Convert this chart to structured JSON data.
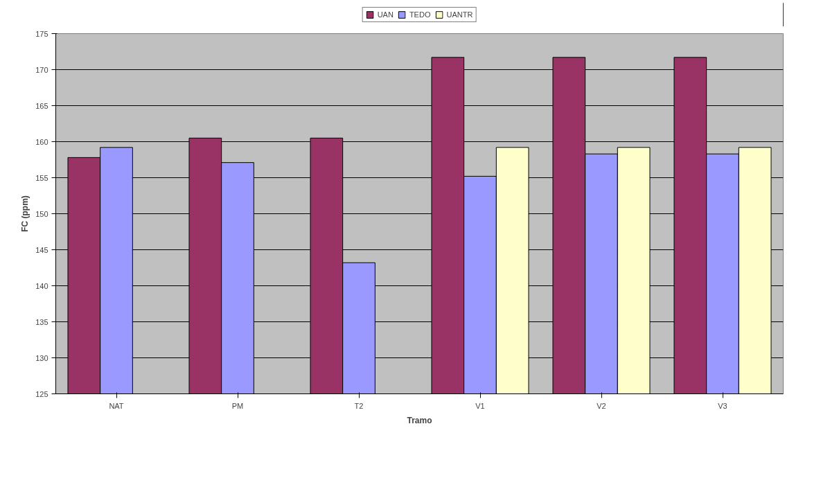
{
  "chart_data": {
    "type": "bar",
    "xlabel": "Tramo",
    "ylabel": "FC (ppm)",
    "categories": [
      "NAT",
      "PM",
      "T2",
      "V1",
      "V2",
      "V3"
    ],
    "series": [
      {
        "name": "UAN",
        "color": "#993366",
        "values": [
          157.8,
          160.5,
          160.5,
          171.7,
          171.7,
          171.7
        ]
      },
      {
        "name": "TEDO",
        "color": "#9999ff",
        "values": [
          159.2,
          157.1,
          143.2,
          155.2,
          158.3,
          158.3
        ]
      },
      {
        "name": "UANTR",
        "color": "#ffffcc",
        "values": [
          null,
          null,
          null,
          159.2,
          159.2,
          159.2
        ]
      }
    ],
    "ylim": [
      125,
      175
    ],
    "yticks": [
      125,
      130,
      135,
      140,
      145,
      150,
      155,
      160,
      165,
      170,
      175
    ],
    "grid": "y",
    "legend": "top"
  }
}
